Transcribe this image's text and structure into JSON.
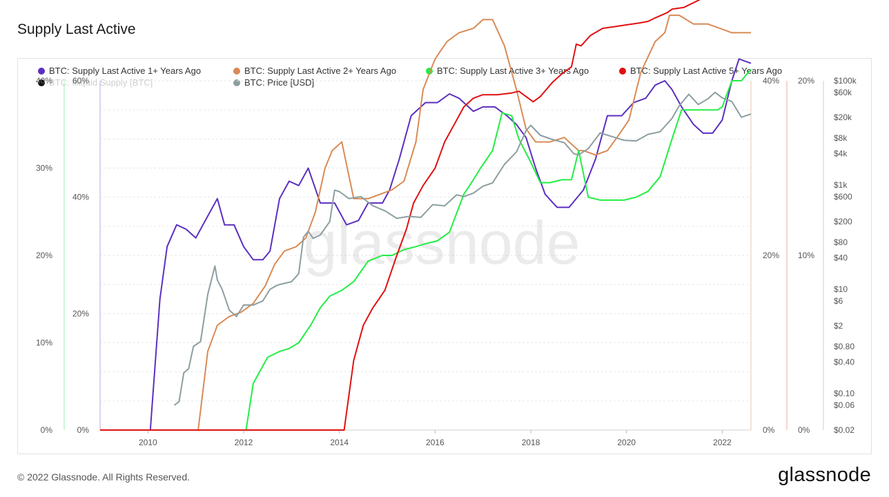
{
  "page": {
    "title": "Supply Last Active",
    "footer": "© 2022 Glassnode. All Rights Reserved.",
    "logo": "glassnode",
    "watermark": "glassnode"
  },
  "legend": [
    {
      "label": "BTC: Supply Last Active 1+ Years Ago",
      "color": "#5b2fc0",
      "enabled": true
    },
    {
      "label": "BTC: Supply Last Active 2+ Years Ago",
      "color": "#d98a55",
      "enabled": true
    },
    {
      "label": "BTC: Supply Last Active 3+ Years Ago",
      "color": "#22ee44",
      "enabled": true
    },
    {
      "label": "BTC: Supply Last Active 5+ Years Ago",
      "color": "#e01010",
      "enabled": true
    },
    {
      "label": "BTC: Illiquid Supply [BTC]",
      "color": "#111111",
      "enabled": false
    },
    {
      "label": "BTC: Price [USD]",
      "color": "#8c9ea0",
      "enabled": true
    }
  ],
  "chart_data": {
    "type": "line",
    "title": "Supply Last Active",
    "x_ticks": [
      "2010",
      "2012",
      "2014",
      "2016",
      "2018",
      "2020",
      "2022"
    ],
    "xlim": [
      2009.0,
      2022.6
    ],
    "axes": {
      "y1": {
        "ticks": [
          "0%",
          "10%",
          "20%",
          "30%",
          "40%"
        ],
        "range": [
          0,
          40
        ],
        "color": "#5b2fc0"
      },
      "y2": {
        "ticks": [
          "0%",
          "20%",
          "40%",
          "60%"
        ],
        "range": [
          0,
          60
        ],
        "color": "#22ee44"
      },
      "y3": {
        "ticks": [
          "0%",
          "20%",
          "40%"
        ],
        "range": [
          0,
          40
        ],
        "color": "#d98a55"
      },
      "y4": {
        "ticks": [
          "0%",
          "10%",
          "20%"
        ],
        "range": [
          0,
          20
        ],
        "color": "#e01010"
      },
      "price": {
        "ticks": [
          "$0.02",
          "$0.06",
          "$0.10",
          "$0.40",
          "$0.80",
          "$2",
          "$6",
          "$10",
          "$40",
          "$80",
          "$200",
          "$600",
          "$1k",
          "$4k",
          "$8k",
          "$20k",
          "$60k",
          "$100k"
        ],
        "tick_values": [
          0.02,
          0.06,
          0.1,
          0.4,
          0.8,
          2,
          6,
          10,
          40,
          80,
          200,
          600,
          1000,
          4000,
          8000,
          20000,
          60000,
          100000
        ],
        "scale": "log",
        "color": "#8c9ea0"
      }
    },
    "series": [
      {
        "name": "BTC: Supply Last Active 1+ Years Ago",
        "axis": "y1",
        "color": "#5b2fc0",
        "x": [
          2009.0,
          2010.05,
          2010.25,
          2010.4,
          2010.6,
          2010.8,
          2011.0,
          2011.2,
          2011.45,
          2011.6,
          2011.8,
          2012.0,
          2012.2,
          2012.4,
          2012.55,
          2012.75,
          2012.95,
          2013.15,
          2013.35,
          2013.6,
          2013.9,
          2014.15,
          2014.4,
          2014.6,
          2014.9,
          2015.05,
          2015.25,
          2015.5,
          2015.8,
          2016.05,
          2016.3,
          2016.5,
          2016.8,
          2017.0,
          2017.25,
          2017.5,
          2017.7,
          2017.9,
          2018.1,
          2018.3,
          2018.55,
          2018.8,
          2019.1,
          2019.35,
          2019.6,
          2019.9,
          2020.15,
          2020.4,
          2020.6,
          2020.8,
          2020.95,
          2021.15,
          2021.4,
          2021.6,
          2021.8,
          2022.0,
          2022.2,
          2022.35,
          2022.6
        ],
        "values": [
          0,
          0,
          15,
          21,
          23.5,
          23,
          22,
          24,
          26.5,
          23.5,
          23.5,
          21,
          19.5,
          19.5,
          20.5,
          26.5,
          28.5,
          28,
          30,
          26,
          26,
          23.5,
          24,
          26,
          26,
          27.5,
          31,
          36,
          37.5,
          37.5,
          38.5,
          38,
          36.5,
          37,
          37,
          36,
          35,
          33.5,
          30,
          27,
          25.5,
          25.5,
          27.5,
          31,
          36,
          36,
          37.5,
          38,
          39.5,
          40,
          39,
          37,
          35,
          34,
          34,
          35.5,
          40,
          42.5,
          42
        ]
      },
      {
        "name": "BTC: Supply Last Active 2+ Years Ago",
        "axis": "y3",
        "color": "#d98a55",
        "x": [
          2009.0,
          2011.05,
          2011.25,
          2011.45,
          2011.7,
          2011.95,
          2012.2,
          2012.45,
          2012.65,
          2012.85,
          2013.1,
          2013.3,
          2013.5,
          2013.7,
          2013.85,
          2014.05,
          2014.3,
          2014.6,
          2014.85,
          2015.1,
          2015.35,
          2015.6,
          2015.75,
          2016.0,
          2016.25,
          2016.5,
          2016.8,
          2017.0,
          2017.2,
          2017.45,
          2017.7,
          2017.9,
          2018.1,
          2018.4,
          2018.7,
          2018.9,
          2019.0,
          2019.1,
          2019.35,
          2019.6,
          2019.8,
          2020.05,
          2020.3,
          2020.6,
          2020.8,
          2020.9,
          2021.1,
          2021.4,
          2021.7,
          2021.95,
          2022.2,
          2022.6
        ],
        "values": [
          0,
          0,
          9,
          12,
          13,
          13.5,
          14.5,
          16.5,
          19,
          20.5,
          21,
          22,
          25,
          30,
          32,
          33,
          26.5,
          26.5,
          27,
          27.5,
          28.5,
          33,
          39,
          42.5,
          44.5,
          45.5,
          46,
          47,
          47,
          44,
          39,
          34.5,
          33,
          33,
          33.5,
          32.5,
          32,
          32,
          31.5,
          32,
          33.5,
          35.5,
          41,
          44.5,
          45.5,
          47.5,
          47.5,
          46.5,
          46.5,
          46,
          45.5,
          45.5
        ]
      },
      {
        "name": "BTC: Supply Last Active 3+ Years Ago",
        "axis": "y2",
        "color": "#22ee44",
        "x": [
          2009.0,
          2012.05,
          2012.2,
          2012.5,
          2012.75,
          2012.95,
          2013.15,
          2013.4,
          2013.6,
          2013.8,
          2014.05,
          2014.3,
          2014.6,
          2014.9,
          2015.1,
          2015.35,
          2015.6,
          2015.8,
          2016.05,
          2016.3,
          2016.6,
          2016.8,
          2016.95,
          2017.2,
          2017.4,
          2017.6,
          2017.75,
          2018.0,
          2018.2,
          2018.4,
          2018.65,
          2018.85,
          2019.0,
          2019.2,
          2019.45,
          2019.7,
          2019.95,
          2020.2,
          2020.45,
          2020.7,
          2020.95,
          2021.15,
          2021.4,
          2021.65,
          2021.9,
          2022.0,
          2022.2,
          2022.4,
          2022.6
        ],
        "values": [
          0,
          0,
          8,
          12.5,
          13.5,
          14,
          15,
          18,
          21,
          23,
          24,
          25.5,
          29,
          30,
          30,
          31,
          31.5,
          32,
          32.5,
          34,
          40.5,
          43,
          45,
          48,
          54.5,
          54,
          50,
          46,
          42.5,
          42.5,
          43,
          43,
          48,
          40,
          39.5,
          39.5,
          39.5,
          40,
          41,
          43.5,
          50,
          55,
          55,
          55,
          55,
          55.5,
          60,
          60,
          62
        ]
      },
      {
        "name": "BTC: Supply Last Active 5+ Years Ago",
        "axis": "y4",
        "color": "#e01010",
        "x": [
          2009.0,
          2014.1,
          2014.3,
          2014.5,
          2014.7,
          2014.95,
          2015.2,
          2015.4,
          2015.55,
          2015.75,
          2016.0,
          2016.2,
          2016.4,
          2016.6,
          2016.8,
          2017.0,
          2017.3,
          2017.6,
          2017.75,
          2017.9,
          2018.05,
          2018.2,
          2018.45,
          2018.65,
          2018.85,
          2018.95,
          2019.05,
          2019.25,
          2019.5,
          2019.75,
          2020.0,
          2020.25,
          2020.45,
          2020.6,
          2020.85,
          2020.95,
          2021.2,
          2021.5,
          2021.75,
          2022.0,
          2022.25,
          2022.45,
          2022.6
        ],
        "values": [
          0,
          0,
          4,
          6,
          7,
          8,
          10,
          11.5,
          13,
          14,
          15,
          16.5,
          17.5,
          18.5,
          19,
          19.2,
          19.2,
          19.3,
          19.4,
          19.1,
          18.8,
          19.1,
          19.9,
          20.4,
          20.8,
          22.1,
          22,
          22.6,
          23,
          23.1,
          23.2,
          23.3,
          23.4,
          23.6,
          23.9,
          24.1,
          24.2,
          24.6,
          25,
          25.5,
          25.9,
          26.2,
          26.5
        ]
      },
      {
        "name": "BTC: Price [USD]",
        "axis": "price",
        "color": "#8c9ea0",
        "x": [
          2010.55,
          2010.65,
          2010.75,
          2010.85,
          2010.95,
          2011.1,
          2011.25,
          2011.4,
          2011.45,
          2011.55,
          2011.7,
          2011.85,
          2012.0,
          2012.2,
          2012.4,
          2012.55,
          2012.7,
          2012.85,
          2013.0,
          2013.15,
          2013.25,
          2013.35,
          2013.45,
          2013.6,
          2013.8,
          2013.9,
          2014.0,
          2014.2,
          2014.45,
          2014.7,
          2014.95,
          2015.2,
          2015.45,
          2015.7,
          2015.95,
          2016.2,
          2016.45,
          2016.6,
          2016.8,
          2017.0,
          2017.2,
          2017.45,
          2017.7,
          2017.9,
          2018.0,
          2018.2,
          2018.45,
          2018.7,
          2018.9,
          2019.0,
          2019.2,
          2019.45,
          2019.7,
          2019.95,
          2020.2,
          2020.45,
          2020.7,
          2020.95,
          2021.1,
          2021.3,
          2021.5,
          2021.7,
          2021.85,
          2022.0,
          2022.2,
          2022.4,
          2022.6
        ],
        "values": [
          0.06,
          0.07,
          0.25,
          0.3,
          0.8,
          1,
          8,
          28,
          15,
          10,
          4,
          3,
          5,
          5,
          6,
          10,
          12,
          13,
          14,
          20,
          100,
          130,
          95,
          110,
          200,
          800,
          750,
          550,
          600,
          400,
          320,
          230,
          250,
          240,
          420,
          400,
          650,
          600,
          700,
          950,
          1100,
          2500,
          4300,
          11000,
          14000,
          9000,
          7500,
          6500,
          4000,
          3800,
          5000,
          10000,
          8500,
          7200,
          7000,
          9400,
          10500,
          19000,
          33000,
          55000,
          35000,
          45000,
          60000,
          47000,
          40000,
          20000,
          23000
        ]
      }
    ]
  }
}
